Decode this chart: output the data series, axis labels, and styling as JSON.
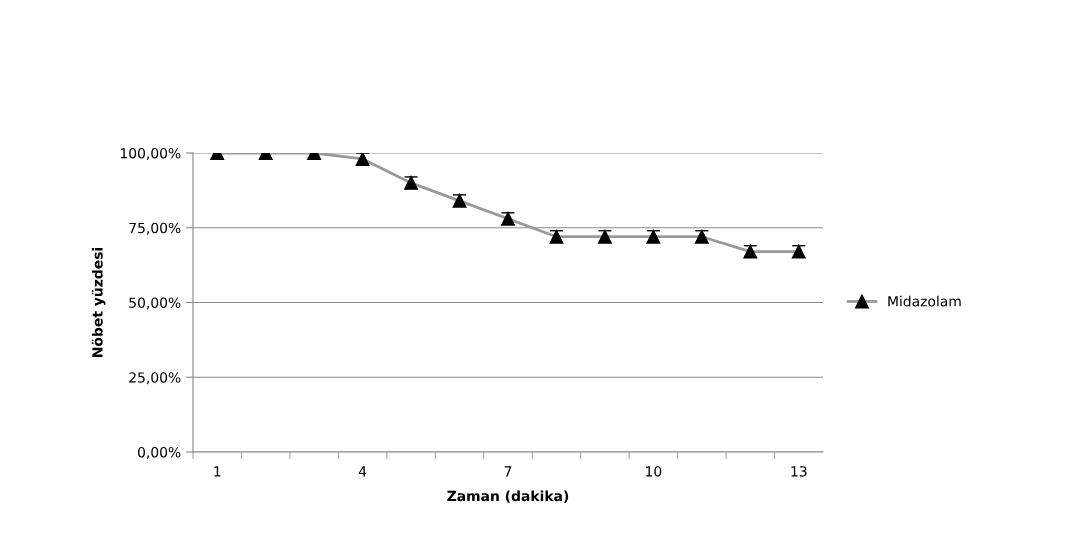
{
  "chart_data": {
    "type": "line",
    "xlabel": "Zaman (dakika)",
    "ylabel": "Nöbet yüzdesi",
    "categories": [
      "1",
      null,
      null,
      "4",
      null,
      null,
      "7",
      null,
      null,
      "10",
      null,
      null,
      "13"
    ],
    "series": [
      {
        "name": "Midazolam",
        "color": "#999999",
        "values": [
          100,
          100,
          100,
          98,
          90,
          84,
          78,
          72,
          72,
          72,
          72,
          67,
          67
        ],
        "errors": [
          null,
          null,
          null,
          [
            98,
            100
          ],
          [
            90,
            92
          ],
          [
            84,
            86
          ],
          [
            78,
            80
          ],
          [
            72,
            74
          ],
          [
            72,
            74
          ],
          [
            72,
            74
          ],
          [
            72,
            74
          ],
          [
            67,
            69
          ],
          [
            67,
            69
          ]
        ]
      }
    ],
    "ylim": [
      0,
      100
    ],
    "yticks": [
      {
        "value": 0,
        "label": "0,00%"
      },
      {
        "value": 25,
        "label": "25,00%"
      },
      {
        "value": 50,
        "label": "50,00%"
      },
      {
        "value": 75,
        "label": "75,00%"
      },
      {
        "value": 100,
        "label": "100,00%"
      }
    ],
    "grid": "y",
    "legend": "right",
    "marker": "triangle",
    "line_style": "solid"
  }
}
